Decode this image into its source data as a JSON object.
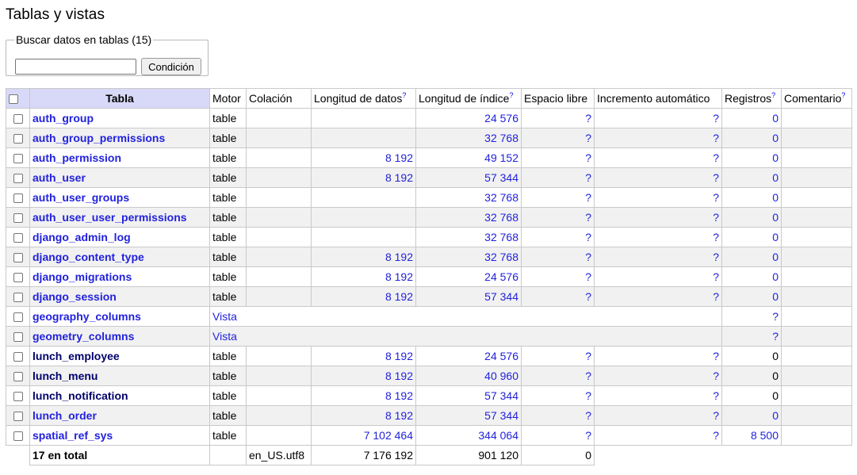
{
  "page": {
    "title": "Tablas y vistas"
  },
  "search": {
    "legend": "Buscar datos en tablas (15)",
    "value": "",
    "button_label": "Condición"
  },
  "table": {
    "headers": {
      "tabla": "Tabla",
      "motor": "Motor",
      "colacion": "Colación",
      "longitud_datos": "Longitud de datos",
      "longitud_indice": "Longitud de índice",
      "espacio_libre": "Espacio libre",
      "incremento": "Incremento automático",
      "registros": "Registros",
      "comentario": "Comentario",
      "help_mark": "?"
    },
    "rows": [
      {
        "name": "auth_group",
        "link": true,
        "motor": "table",
        "data_len": "",
        "index_len": "24 576",
        "free": "?",
        "auto_inc": "?",
        "rows": "0",
        "rows_link": true
      },
      {
        "name": "auth_group_permissions",
        "link": true,
        "motor": "table",
        "data_len": "",
        "index_len": "32 768",
        "free": "?",
        "auto_inc": "?",
        "rows": "0",
        "rows_link": true
      },
      {
        "name": "auth_permission",
        "link": true,
        "motor": "table",
        "data_len": "8 192",
        "index_len": "49 152",
        "free": "?",
        "auto_inc": "?",
        "rows": "0",
        "rows_link": true
      },
      {
        "name": "auth_user",
        "link": true,
        "motor": "table",
        "data_len": "8 192",
        "index_len": "57 344",
        "free": "?",
        "auto_inc": "?",
        "rows": "0",
        "rows_link": true
      },
      {
        "name": "auth_user_groups",
        "link": true,
        "motor": "table",
        "data_len": "",
        "index_len": "32 768",
        "free": "?",
        "auto_inc": "?",
        "rows": "0",
        "rows_link": true
      },
      {
        "name": "auth_user_user_permissions",
        "link": true,
        "motor": "table",
        "data_len": "",
        "index_len": "32 768",
        "free": "?",
        "auto_inc": "?",
        "rows": "0",
        "rows_link": true
      },
      {
        "name": "django_admin_log",
        "link": true,
        "motor": "table",
        "data_len": "",
        "index_len": "32 768",
        "free": "?",
        "auto_inc": "?",
        "rows": "0",
        "rows_link": true
      },
      {
        "name": "django_content_type",
        "link": true,
        "motor": "table",
        "data_len": "8 192",
        "index_len": "32 768",
        "free": "?",
        "auto_inc": "?",
        "rows": "0",
        "rows_link": true
      },
      {
        "name": "django_migrations",
        "link": true,
        "motor": "table",
        "data_len": "8 192",
        "index_len": "24 576",
        "free": "?",
        "auto_inc": "?",
        "rows": "0",
        "rows_link": true
      },
      {
        "name": "django_session",
        "link": true,
        "motor": "table",
        "data_len": "8 192",
        "index_len": "57 344",
        "free": "?",
        "auto_inc": "?",
        "rows": "0",
        "rows_link": true
      },
      {
        "name": "geography_columns",
        "link": true,
        "view": true,
        "motor": "Vista",
        "rows": "?",
        "rows_link": true
      },
      {
        "name": "geometry_columns",
        "link": true,
        "view": true,
        "motor": "Vista",
        "rows": "?",
        "rows_link": true
      },
      {
        "name": "lunch_employee",
        "link": false,
        "motor": "table",
        "data_len": "8 192",
        "index_len": "24 576",
        "free": "?",
        "auto_inc": "?",
        "rows": "0",
        "rows_link": false
      },
      {
        "name": "lunch_menu",
        "link": false,
        "motor": "table",
        "data_len": "8 192",
        "index_len": "40 960",
        "free": "?",
        "auto_inc": "?",
        "rows": "0",
        "rows_link": false
      },
      {
        "name": "lunch_notification",
        "link": false,
        "motor": "table",
        "data_len": "8 192",
        "index_len": "57 344",
        "free": "?",
        "auto_inc": "?",
        "rows": "0",
        "rows_link": false
      },
      {
        "name": "lunch_order",
        "link": true,
        "motor": "table",
        "data_len": "8 192",
        "index_len": "57 344",
        "free": "?",
        "auto_inc": "?",
        "rows": "0",
        "rows_link": true
      },
      {
        "name": "spatial_ref_sys",
        "link": true,
        "motor": "table",
        "data_len": "7 102 464",
        "index_len": "344 064",
        "free": "?",
        "auto_inc": "?",
        "rows": "8 500",
        "rows_link": true
      }
    ],
    "total": {
      "label": "17 en total",
      "collation": "en_US.utf8",
      "data_len": "7 176 192",
      "index_len": "901 120",
      "free": "0"
    }
  }
}
